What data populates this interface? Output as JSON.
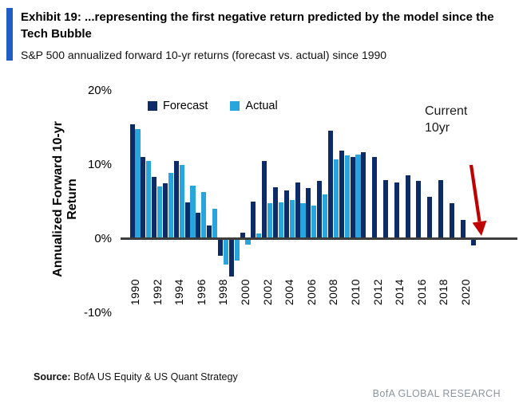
{
  "header": {
    "exhibit_title": "Exhibit 19: ...representing the first negative return predicted by the model since the Tech Bubble",
    "subtitle": "S&P 500 annualized forward 10-yr returns (forecast vs. actual) since 1990"
  },
  "annotation": {
    "line1": "Current",
    "line2": "10yr",
    "arrow_color": "#c00000"
  },
  "footer": {
    "source_label": "Source:",
    "source_text": "BofA US Equity & US Quant Strategy",
    "brand": "BofA GLOBAL RESEARCH"
  },
  "colors": {
    "accent_bar": "#1f5fc4",
    "forecast": "#0d2b67",
    "actual": "#29a5de",
    "axis_line": "#3d3d3d",
    "brand_gray": "#8d959e"
  },
  "chart_data": {
    "type": "bar",
    "title": "S&P 500 annualized forward 10-yr returns (forecast vs. actual) since 1990",
    "ylabel_line1": "Annualized Forward 10-yr",
    "ylabel_line2": "Return",
    "ylim": [
      -10,
      20
    ],
    "y_ticks": [
      20,
      10,
      0,
      -10
    ],
    "grid": false,
    "legend_position": "top",
    "x_tick_years": [
      1990,
      1992,
      1994,
      1996,
      1998,
      2000,
      2002,
      2004,
      2006,
      2008,
      2010,
      2012,
      2014,
      2016,
      2018,
      2020
    ],
    "years": [
      1990,
      1991,
      1992,
      1993,
      1994,
      1995,
      1996,
      1997,
      1998,
      1999,
      2000,
      2001,
      2002,
      2003,
      2004,
      2005,
      2006,
      2007,
      2008,
      2009,
      2010,
      2011,
      2012,
      2013,
      2014,
      2015,
      2016,
      2017,
      2018,
      2019,
      2020,
      2021
    ],
    "series": [
      {
        "name": "Forecast",
        "color": "#0d2b67",
        "values": [
          15.5,
          11.1,
          8.4,
          7.5,
          10.5,
          4.9,
          3.6,
          1.8,
          -2.3,
          -5.0,
          0.9,
          5.1,
          10.5,
          7.0,
          6.6,
          7.6,
          6.9,
          7.8,
          14.6,
          11.9,
          11.1,
          11.7,
          11.1,
          8.0,
          7.6,
          8.6,
          7.9,
          5.7,
          8.0,
          4.8,
          2.6,
          -0.9
        ]
      },
      {
        "name": "Actual",
        "color": "#29a5de",
        "values": [
          14.8,
          10.5,
          7.1,
          8.9,
          10.0,
          7.2,
          6.3,
          4.1,
          -3.4,
          -2.9,
          -0.8,
          0.7,
          4.8,
          5.0,
          5.3,
          4.8,
          4.5,
          6.0,
          10.8,
          11.3,
          11.4,
          null,
          null,
          null,
          null,
          null,
          null,
          null,
          null,
          null,
          null,
          null
        ]
      }
    ]
  }
}
